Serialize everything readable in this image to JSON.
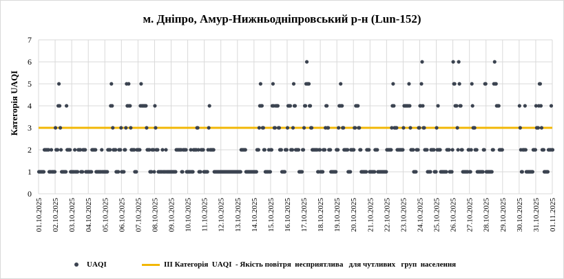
{
  "chart_data": {
    "type": "scatter",
    "title": "м. Дніпро, Амур-Нижньодніпровський р-н (Lun-152)",
    "ylabel": "Категорія UAQI",
    "xlabel": "",
    "ylim": [
      0,
      7
    ],
    "yticks": [
      "0",
      "1",
      "2",
      "3",
      "4",
      "5",
      "6",
      "7"
    ],
    "x_tick_labels": [
      "01.10.2025",
      "02.10.2025",
      "03.10.2025",
      "04.10.2025",
      "05.10.2025",
      "06.10.2025",
      "07.10.2025",
      "08.10.2025",
      "09.10.2025",
      "10.10.2025",
      "11.10.2025",
      "12.10.2025",
      "13.10.2025",
      "14.10.2025",
      "15.10.2025",
      "16.10.2025",
      "17.10.2025",
      "18.10.2025",
      "19.10.2025",
      "20.10.2025",
      "21.10.2025",
      "22.10.2025",
      "23.10.2025",
      "24.10.2025",
      "25.10.2025",
      "26.10.2025",
      "27.10.2025",
      "28.10.2025",
      "29.10.2025",
      "30.10.2025",
      "31.10.2025",
      "01.11.2025"
    ],
    "grid": true,
    "legend_position": "bottom",
    "colors": {
      "points": "#3b4350",
      "threshold": "#f2b705",
      "grid": "#d9d9d9"
    },
    "series": [
      {
        "name": "UAQI",
        "type": "scatter",
        "days": [
          {
            "day": "01.10.2025",
            "hourly": [
              1,
              1,
              1,
              1,
              1,
              1,
              1,
              1,
              2,
              2,
              2,
              2,
              2,
              2,
              2,
              1,
              1,
              1,
              2,
              1,
              1,
              1,
              1,
              1
            ]
          },
          {
            "day": "02.10.2025",
            "hourly": [
              3,
              2,
              2,
              2,
              4,
              5,
              4,
              3,
              2,
              1,
              1,
              1,
              1,
              1,
              1,
              1,
              4,
              2,
              2,
              2,
              2,
              2,
              1,
              1
            ]
          },
          {
            "day": "03.10.2025",
            "hourly": [
              1,
              1,
              1,
              1,
              2,
              1,
              1,
              1,
              1,
              2,
              2,
              2,
              2,
              1,
              1,
              1,
              2,
              2,
              2,
              2,
              1,
              1,
              1,
              1
            ]
          },
          {
            "day": "04.10.2025",
            "hourly": [
              1,
              1,
              1,
              1,
              1,
              2,
              2,
              2,
              2,
              2,
              2,
              1,
              1,
              1,
              1,
              1,
              1,
              1,
              1,
              2,
              1,
              1,
              1,
              1
            ]
          },
          {
            "day": "05.10.2025",
            "hourly": [
              1,
              1,
              1,
              1,
              2,
              2,
              2,
              2,
              4,
              5,
              4,
              3,
              2,
              2,
              2,
              2,
              1,
              1,
              1,
              1,
              2,
              2,
              2,
              3
            ]
          },
          {
            "day": "06.10.2025",
            "hourly": [
              1,
              1,
              1,
              1,
              2,
              2,
              3,
              5,
              4,
              4,
              5,
              4,
              4,
              3,
              2,
              2,
              2,
              2,
              2,
              1,
              1,
              1,
              2,
              2
            ]
          },
          {
            "day": "07.10.2025",
            "hourly": [
              2,
              2,
              2,
              4,
              5,
              4,
              4,
              4,
              4,
              4,
              4,
              4,
              3,
              2,
              2,
              2,
              2,
              1,
              1,
              1,
              2,
              2,
              2,
              1
            ]
          },
          {
            "day": "08.10.2025",
            "hourly": [
              4,
              3,
              2,
              2,
              2,
              1,
              1,
              1,
              1,
              1,
              1,
              2,
              1,
              1,
              1,
              1,
              2,
              1,
              1,
              1,
              1,
              1,
              1,
              1
            ]
          },
          {
            "day": "09.10.2025",
            "hourly": [
              1,
              1,
              1,
              1,
              1,
              1,
              1,
              2,
              2,
              2,
              2,
              2,
              2,
              2,
              2,
              1,
              1,
              2,
              2,
              2,
              2,
              2,
              1,
              1
            ]
          },
          {
            "day": "10.10.2025",
            "hourly": [
              1,
              1,
              1,
              1,
              2,
              1,
              1,
              1,
              2,
              2,
              2,
              2,
              2,
              3,
              3,
              2,
              1,
              1,
              1,
              2,
              2,
              2,
              2,
              1
            ]
          },
          {
            "day": "11.10.2025",
            "hourly": [
              1,
              1,
              1,
              1,
              1,
              2,
              3,
              4,
              2,
              2,
              2,
              2,
              2,
              2,
              1,
              1,
              1,
              1,
              1,
              1,
              1,
              1,
              1,
              1
            ]
          },
          {
            "day": "12.10.2025",
            "hourly": [
              1,
              1,
              1,
              1,
              1,
              1,
              1,
              1,
              1,
              1,
              1,
              1,
              1,
              1,
              1,
              1,
              1,
              1,
              1,
              1,
              1,
              1,
              1,
              1
            ]
          },
          {
            "day": "13.10.2025",
            "hourly": [
              1,
              1,
              1,
              1,
              1,
              2,
              2,
              2,
              2,
              2,
              2,
              2,
              1,
              1,
              1,
              1,
              1,
              1,
              1,
              1,
              1,
              1,
              1,
              1
            ]
          },
          {
            "day": "14.10.2025",
            "hourly": [
              1,
              1,
              1,
              1,
              2,
              2,
              2,
              3,
              4,
              5,
              4,
              4,
              3,
              3,
              2,
              2,
              1,
              1,
              1,
              1,
              1,
              2,
              1,
              1
            ]
          },
          {
            "day": "15.10.2025",
            "hourly": [
              2,
              2,
              4,
              5,
              4,
              3,
              3,
              4,
              4,
              4,
              4,
              3,
              3,
              2,
              2,
              2,
              1,
              1,
              1,
              1,
              1,
              2,
              2,
              2
            ]
          },
          {
            "day": "16.10.2025",
            "hourly": [
              3,
              4,
              4,
              4,
              4,
              2,
              2,
              2,
              3,
              5,
              4,
              4,
              2,
              2,
              2,
              2,
              2,
              1,
              1,
              1,
              1,
              1,
              2,
              2
            ]
          },
          {
            "day": "17.10.2025",
            "hourly": [
              3,
              4,
              4,
              5,
              6,
              5,
              5,
              5,
              4,
              4,
              3,
              3,
              2,
              2,
              2,
              2,
              2,
              2,
              2,
              2,
              1,
              1,
              2,
              2
            ]
          },
          {
            "day": "18.10.2025",
            "hourly": [
              1,
              1,
              1,
              1,
              2,
              2,
              2,
              3,
              4,
              4,
              3,
              3,
              2,
              2,
              2,
              1,
              1,
              1,
              1,
              1,
              1,
              1,
              1,
              2
            ]
          },
          {
            "day": "19.10.2025",
            "hourly": [
              2,
              2,
              3,
              4,
              4,
              5,
              4,
              4,
              3,
              3,
              2,
              2,
              2,
              2,
              2,
              2,
              1,
              1,
              1,
              1,
              2,
              2,
              2,
              2
            ]
          },
          {
            "day": "20.10.2025",
            "hourly": [
              2,
              3,
              3,
              4,
              4,
              4,
              4,
              3,
              3,
              2,
              2,
              1,
              1,
              1,
              1,
              1,
              1,
              1,
              1,
              2,
              2,
              2,
              2,
              1
            ]
          },
          {
            "day": "21.10.2025",
            "hourly": [
              1,
              1,
              1,
              1,
              1,
              1,
              1,
              2,
              2,
              2,
              2,
              1,
              1,
              1,
              1,
              1,
              1,
              1,
              1,
              1,
              1,
              1,
              1,
              1
            ]
          },
          {
            "day": "22.10.2025",
            "hourly": [
              2,
              2,
              2,
              2,
              2,
              2,
              2,
              3,
              4,
              5,
              4,
              3,
              3,
              3,
              3,
              2,
              2,
              2,
              2,
              2,
              2,
              2,
              2,
              2
            ]
          },
          {
            "day": "23.10.2025",
            "hourly": [
              3,
              4,
              4,
              4,
              4,
              4,
              4,
              4,
              5,
              4,
              3,
              2,
              2,
              2,
              2,
              1,
              1,
              1,
              1,
              2,
              2,
              2,
              3,
              3
            ]
          },
          {
            "day": "24.10.2025",
            "hourly": [
              4,
              4,
              5,
              6,
              4,
              3,
              3,
              2,
              2,
              2,
              2,
              1,
              1,
              1,
              1,
              1,
              2,
              2,
              2,
              2,
              2,
              1,
              1,
              1
            ]
          },
          {
            "day": "25.10.2025",
            "hourly": [
              3,
              2,
              4,
              2,
              2,
              2,
              1,
              1,
              1,
              1,
              1,
              1,
              1,
              1,
              1,
              2,
              2,
              2,
              2,
              1,
              1,
              1,
              1,
              2
            ]
          },
          {
            "day": "26.10.2025",
            "hourly": [
              6,
              5,
              5,
              4,
              4,
              4,
              3,
              2,
              6,
              5,
              4,
              4,
              2,
              2,
              1,
              1,
              1,
              1,
              1,
              1,
              1,
              1,
              2,
              2
            ]
          },
          {
            "day": "27.10.2025",
            "hourly": [
              1,
              1,
              2,
              5,
              4,
              3,
              3,
              3,
              2,
              2,
              2,
              1,
              1,
              1,
              1,
              1,
              1,
              1,
              1,
              1,
              2,
              2,
              5,
              5
            ]
          },
          {
            "day": "28.10.2025",
            "hourly": [
              1,
              1,
              1,
              1,
              1,
              1,
              1,
              1,
              1,
              2,
              2,
              5,
              6,
              5,
              5,
              4,
              4,
              4,
              4,
              2,
              2,
              2,
              2,
              2
            ]
          },
          {
            "day": "29.10.2025",
            "hourly": []
          },
          {
            "day": "30.10.2025",
            "hourly": [
              4,
              3,
              2,
              1,
              1,
              2,
              2,
              2,
              4,
              2,
              1,
              1,
              1,
              1,
              1,
              1,
              1,
              1,
              1,
              1,
              2,
              2,
              2,
              2
            ]
          },
          {
            "day": "31.10.2025",
            "hourly": [
              4,
              3,
              3,
              3,
              4,
              5,
              5,
              4,
              3,
              2,
              2,
              2,
              1,
              1,
              1,
              1,
              1,
              1,
              2,
              2,
              2,
              2,
              4,
              2
            ]
          },
          {
            "day": "01.11.2025",
            "hourly": [
              2
            ]
          }
        ]
      },
      {
        "name": "ІІІ Категорія  UAQI  - Якість повітря  несприятлива   для чутливих   груп  населення",
        "type": "line",
        "value": 3
      }
    ]
  },
  "legend": {
    "uaqi_label": "UAQI",
    "threshold_label": "ІІІ Категорія  UAQI  - Якість повітря  несприятлива   для чутливих   груп  населення"
  }
}
